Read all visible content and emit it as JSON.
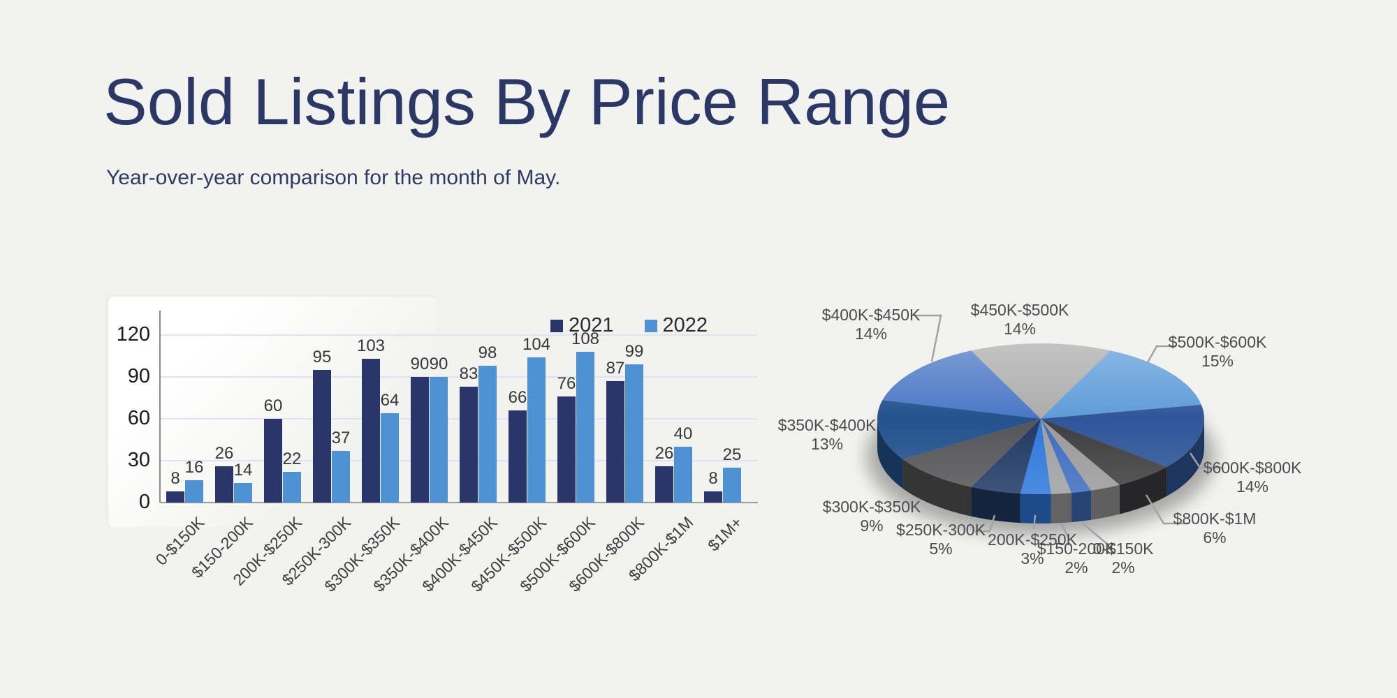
{
  "page": {
    "title": "Sold Listings By Price Range",
    "subtitle": "Year-over-year comparison for the month of May."
  },
  "colors": {
    "background": "#f2f2f0",
    "title_text": "#2b3765",
    "bar_2021": "#2a356a",
    "bar_2022": "#4e92d4",
    "gridline": "#dde3ef",
    "axis_line": "#8c8c8c"
  },
  "chart_data": [
    {
      "type": "bar",
      "title": "",
      "categories": [
        "0-$150K",
        "$150-200K",
        "200K-$250K",
        "$250K-300K",
        "$300K-$350K",
        "$350K-$400K",
        "$400K-$450K",
        "$450K-$500K",
        "$500K-$600K",
        "$600K-$800K",
        "$800K-$1M",
        "$1M+"
      ],
      "series": [
        {
          "name": "2021",
          "color": "#2a356a",
          "values": [
            8,
            26,
            60,
            95,
            103,
            90,
            83,
            66,
            76,
            87,
            26,
            8
          ]
        },
        {
          "name": "2022",
          "color": "#4e92d4",
          "values": [
            16,
            14,
            22,
            37,
            64,
            90,
            98,
            104,
            108,
            99,
            40,
            25
          ]
        }
      ],
      "ylim": [
        0,
        135
      ],
      "yticks": [
        0,
        30,
        60,
        90,
        120
      ],
      "grid": true,
      "value_labels": true,
      "legend_position": "top-right"
    },
    {
      "type": "pie",
      "style": "3d",
      "start_angle_deg_clockwise_from_top": 162,
      "slices": [
        {
          "label": "0-$150K",
          "pct": 2,
          "color": "#3e6dbe",
          "label_visible": true
        },
        {
          "label": "$150-200K",
          "pct": 2,
          "color": "#9fa0a2",
          "label_visible": true
        },
        {
          "label": "200K-$250K",
          "pct": 3,
          "color": "#2e78dc",
          "label_visible": true
        },
        {
          "label": "$250K-300K",
          "pct": 5,
          "color": "#203864",
          "label_visible": true
        },
        {
          "label": "$300K-$350K",
          "pct": 9,
          "color": "#555557",
          "label_visible": true
        },
        {
          "label": "$350K-$400K",
          "pct": 13,
          "color": "#24528e",
          "label_visible": true
        },
        {
          "label": "$400K-$450K",
          "pct": 14,
          "color": "#4a77c5",
          "label_visible": true
        },
        {
          "label": "$450K-$500K",
          "pct": 14,
          "color": "#acacac",
          "label_visible": true
        },
        {
          "label": "$500K-$600K",
          "pct": 15,
          "color": "#5e9cd8",
          "label_visible": true
        },
        {
          "label": "$600K-$800K",
          "pct": 14,
          "color": "#2e5699",
          "label_visible": true
        },
        {
          "label": "$800K-$1M",
          "pct": 6,
          "color": "#3e3e40",
          "label_visible": true
        },
        {
          "label": "$1M+",
          "pct": 3,
          "color": "#9a9a9a",
          "label_visible": false
        }
      ]
    }
  ]
}
